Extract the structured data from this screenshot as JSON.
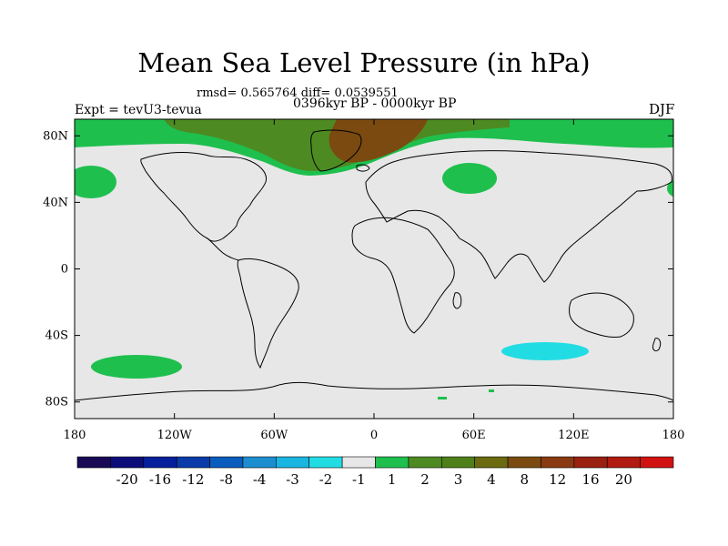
{
  "title": "Mean Sea Level Pressure (in hPa)",
  "stats_line": "rmsd= 0.565764 diff= 0.0539551",
  "period_line": "0396kyr BP - 0000kyr BP",
  "experiment_line": "Expt = tevU3-tevua",
  "season": "DJF",
  "lat_labels": [
    "80N",
    "40N",
    "0",
    "40S",
    "80S"
  ],
  "lon_labels": [
    "180",
    "120W",
    "60W",
    "0",
    "60E",
    "120E",
    "180"
  ],
  "colorbar": {
    "colors": [
      "#1a0a55",
      "#0d0d7a",
      "#06209b",
      "#0a3ba8",
      "#0a5cbd",
      "#1c8ed0",
      "#1ab5e0",
      "#22dce3",
      "#e7e7e7",
      "#1fbf4e",
      "#4e8a22",
      "#4f7f18",
      "#6b6a10",
      "#7a4a10",
      "#8a3a12",
      "#9a2010",
      "#b01a10",
      "#d11212"
    ],
    "labels": [
      "-20",
      "-16",
      "-12",
      "-8",
      "-4",
      "-3",
      "-2",
      "-1",
      "1",
      "2",
      "3",
      "4",
      "8",
      "12",
      "16",
      "20"
    ]
  },
  "colors": {
    "background_field": "#e7e7e7",
    "positive_light": "#1fbf4e",
    "positive_mid": "#4e8a22",
    "positive_high": "#7a4a10",
    "negative_light": "#22dce3"
  }
}
